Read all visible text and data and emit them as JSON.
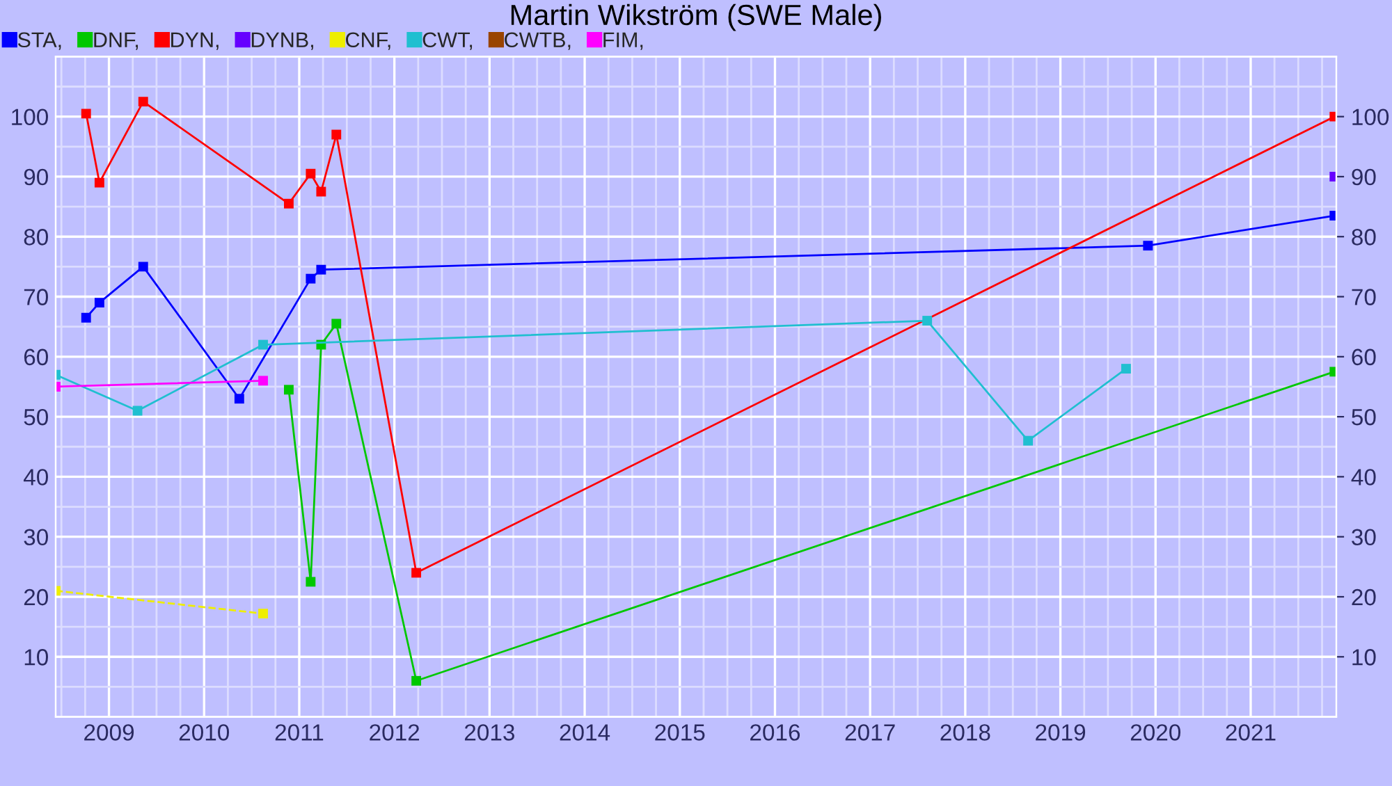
{
  "chart_data": {
    "type": "line",
    "title": "Martin Wikström (SWE Male)",
    "xlim": [
      2008.44,
      2021.9
    ],
    "xticks": [
      2009,
      2010,
      2011,
      2012,
      2013,
      2014,
      2015,
      2016,
      2017,
      2018,
      2019,
      2020,
      2021
    ],
    "ylim": [
      0,
      110
    ],
    "yticks": [
      10,
      20,
      30,
      40,
      50,
      60,
      70,
      80,
      90,
      100
    ],
    "y2lim": [
      0,
      110
    ],
    "y2ticks": [
      10,
      20,
      30,
      40,
      50,
      60,
      70,
      80,
      90,
      100
    ],
    "grid": true,
    "legend": "top left",
    "marker": "square",
    "series": [
      {
        "name": "STA,",
        "color": "#0000ff",
        "x": [
          2008.76,
          2008.9,
          2009.36,
          2010.37,
          2011.12,
          2011.23,
          2019.92,
          2021.88
        ],
        "values": [
          66.5,
          69,
          75,
          53,
          73,
          74.5,
          78.5,
          83.5
        ]
      },
      {
        "name": "DNF,",
        "color": "#00c800",
        "x": [
          2010.89,
          2011.12,
          2011.23,
          2011.39,
          2012.23,
          2021.88
        ],
        "values": [
          54.5,
          22.5,
          62,
          65.5,
          6,
          57.5
        ]
      },
      {
        "name": "DYN,",
        "color": "#ff0000",
        "x": [
          2008.76,
          2008.9,
          2009.36,
          2010.89,
          2011.12,
          2011.23,
          2011.39,
          2012.23,
          2021.88
        ],
        "values": [
          100.5,
          89,
          102.5,
          85.5,
          90.5,
          87.5,
          97,
          24,
          100
        ]
      },
      {
        "name": "DYNB,",
        "color": "#6600ff",
        "x": [
          2021.88
        ],
        "values": [
          90
        ]
      },
      {
        "name": "CNF,",
        "color": "#eeee00",
        "line_style": "dashed",
        "x": [
          2008.44,
          2010.62
        ],
        "values": [
          21,
          17.2
        ]
      },
      {
        "name": "CWT,",
        "color": "#20bfd0",
        "x": [
          2008.44,
          2009.3,
          2010.62,
          2017.6,
          2018.66,
          2019.69
        ],
        "values": [
          57,
          51,
          62,
          66,
          46,
          58
        ]
      },
      {
        "name": "CWTB,",
        "color": "#994400"
      },
      {
        "name": "FIM,",
        "color": "#ff00ff",
        "x": [
          2008.44,
          2010.62
        ],
        "values": [
          55,
          56
        ]
      }
    ]
  }
}
